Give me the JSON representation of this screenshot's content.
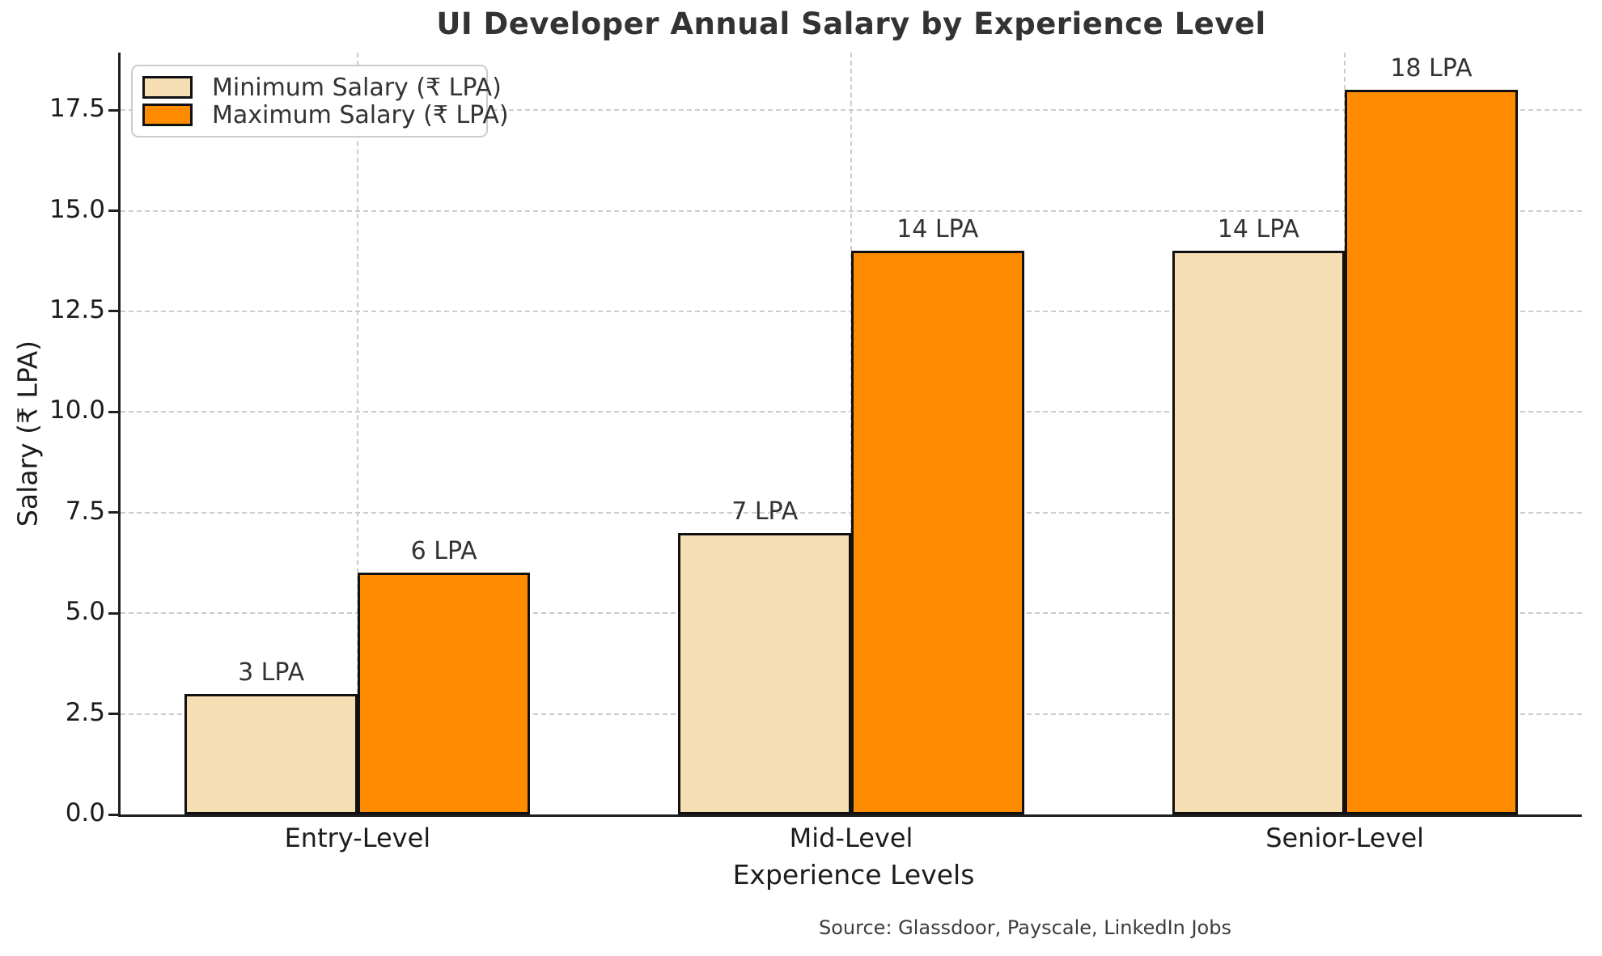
{
  "chart_data": {
    "type": "bar",
    "title": "UI Developer Annual Salary by Experience Level",
    "xlabel": "Experience Levels",
    "ylabel": "Salary (₹ LPA)",
    "categories": [
      "Entry-Level",
      "Mid-Level",
      "Senior-Level"
    ],
    "series": [
      {
        "name": "Minimum Salary (₹ LPA)",
        "color": "#F5DEB3",
        "values": [
          3,
          7,
          14
        ],
        "value_labels": [
          "3 LPA",
          "7 LPA",
          "14 LPA"
        ]
      },
      {
        "name": "Maximum Salary (₹ LPA)",
        "color": "#FF8C00",
        "values": [
          6,
          14,
          18
        ],
        "value_labels": [
          "6 LPA",
          "14 LPA",
          "18 LPA"
        ]
      }
    ],
    "bar_edge_color": "#111111",
    "yticks": [
      0.0,
      2.5,
      5.0,
      7.5,
      10.0,
      12.5,
      15.0,
      17.5
    ],
    "ytick_labels": [
      "0.0",
      "2.5",
      "5.0",
      "7.5",
      "10.0",
      "12.5",
      "15.0",
      "17.5"
    ],
    "ylim": [
      0,
      18.93
    ],
    "bar_width": 0.35,
    "grid": "dashed horizontal and vertical, light gray",
    "legend_position": "upper left",
    "source": "Source: Glassdoor, Payscale, LinkedIn Jobs"
  }
}
